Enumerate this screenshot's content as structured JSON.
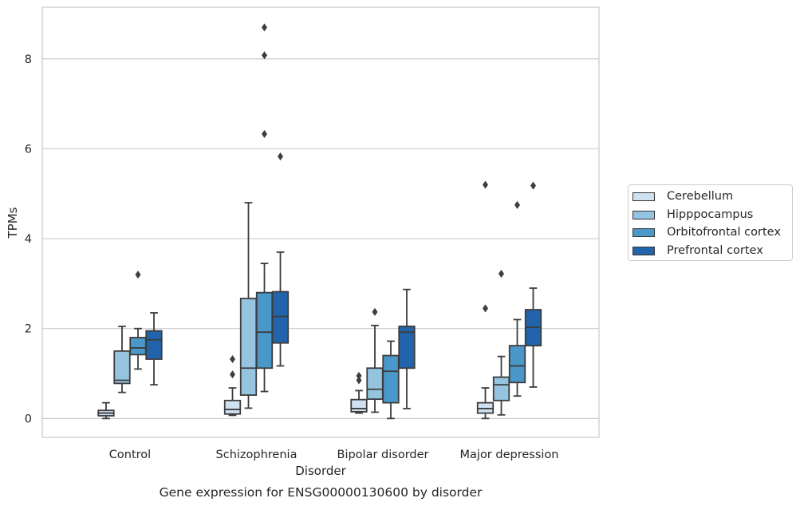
{
  "chart_data": {
    "type": "box",
    "caption": "Gene expression for ENSG00000130600 by disorder",
    "xlabel": "Disorder",
    "ylabel": "TPMs",
    "ylim": [
      -0.42,
      9.15
    ],
    "yticks": [
      0,
      2,
      4,
      6,
      8
    ],
    "grid": "horizontal",
    "legend_position": "right",
    "categories": [
      "Control",
      "Schizophrenia",
      "Bipolar disorder",
      "Major depression"
    ],
    "series": [
      {
        "name": "Cerebellum",
        "color": "#d0e1f2",
        "boxes": [
          {
            "whislo": 0.0,
            "q1": 0.06,
            "med": 0.12,
            "q3": 0.18,
            "whishi": 0.35,
            "fliers": []
          },
          {
            "whislo": 0.07,
            "q1": 0.1,
            "med": 0.2,
            "q3": 0.4,
            "whishi": 0.68,
            "fliers": [
              0.98,
              1.32
            ]
          },
          {
            "whislo": 0.12,
            "q1": 0.15,
            "med": 0.22,
            "q3": 0.42,
            "whishi": 0.62,
            "fliers": [
              0.85,
              0.95
            ]
          },
          {
            "whislo": 0.0,
            "q1": 0.12,
            "med": 0.22,
            "q3": 0.35,
            "whishi": 0.68,
            "fliers": [
              2.45,
              5.2
            ]
          }
        ]
      },
      {
        "name": "Hipppocampus",
        "color": "#94c4df",
        "boxes": [
          {
            "whislo": 0.58,
            "q1": 0.78,
            "med": 0.85,
            "q3": 1.5,
            "whishi": 2.05,
            "fliers": []
          },
          {
            "whislo": 0.23,
            "q1": 0.52,
            "med": 1.12,
            "q3": 2.67,
            "whishi": 4.8,
            "fliers": []
          },
          {
            "whislo": 0.14,
            "q1": 0.43,
            "med": 0.65,
            "q3": 1.12,
            "whishi": 2.07,
            "fliers": [
              2.37
            ]
          },
          {
            "whislo": 0.08,
            "q1": 0.4,
            "med": 0.75,
            "q3": 0.92,
            "whishi": 1.38,
            "fliers": [
              3.22
            ]
          }
        ]
      },
      {
        "name": "Orbitofrontal cortex",
        "color": "#4a98c9",
        "boxes": [
          {
            "whislo": 1.1,
            "q1": 1.42,
            "med": 1.57,
            "q3": 1.8,
            "whishi": 2.0,
            "fliers": [
              3.2
            ]
          },
          {
            "whislo": 0.6,
            "q1": 1.12,
            "med": 1.92,
            "q3": 2.8,
            "whishi": 3.45,
            "fliers": [
              6.33,
              8.08,
              8.7
            ]
          },
          {
            "whislo": 0.0,
            "q1": 0.35,
            "med": 1.05,
            "q3": 1.4,
            "whishi": 1.72,
            "fliers": []
          },
          {
            "whislo": 0.5,
            "q1": 0.8,
            "med": 1.17,
            "q3": 1.62,
            "whishi": 2.2,
            "fliers": [
              4.75
            ]
          }
        ]
      },
      {
        "name": "Prefrontal cortex",
        "color": "#2164ab",
        "boxes": [
          {
            "whislo": 0.75,
            "q1": 1.32,
            "med": 1.75,
            "q3": 1.95,
            "whishi": 2.35,
            "fliers": []
          },
          {
            "whislo": 1.17,
            "q1": 1.68,
            "med": 2.27,
            "q3": 2.82,
            "whishi": 3.7,
            "fliers": [
              5.83
            ]
          },
          {
            "whislo": 0.22,
            "q1": 1.12,
            "med": 1.92,
            "q3": 2.05,
            "whishi": 2.87,
            "fliers": []
          },
          {
            "whislo": 0.7,
            "q1": 1.62,
            "med": 2.03,
            "q3": 2.42,
            "whishi": 2.9,
            "fliers": [
              5.18
            ]
          }
        ]
      }
    ]
  }
}
